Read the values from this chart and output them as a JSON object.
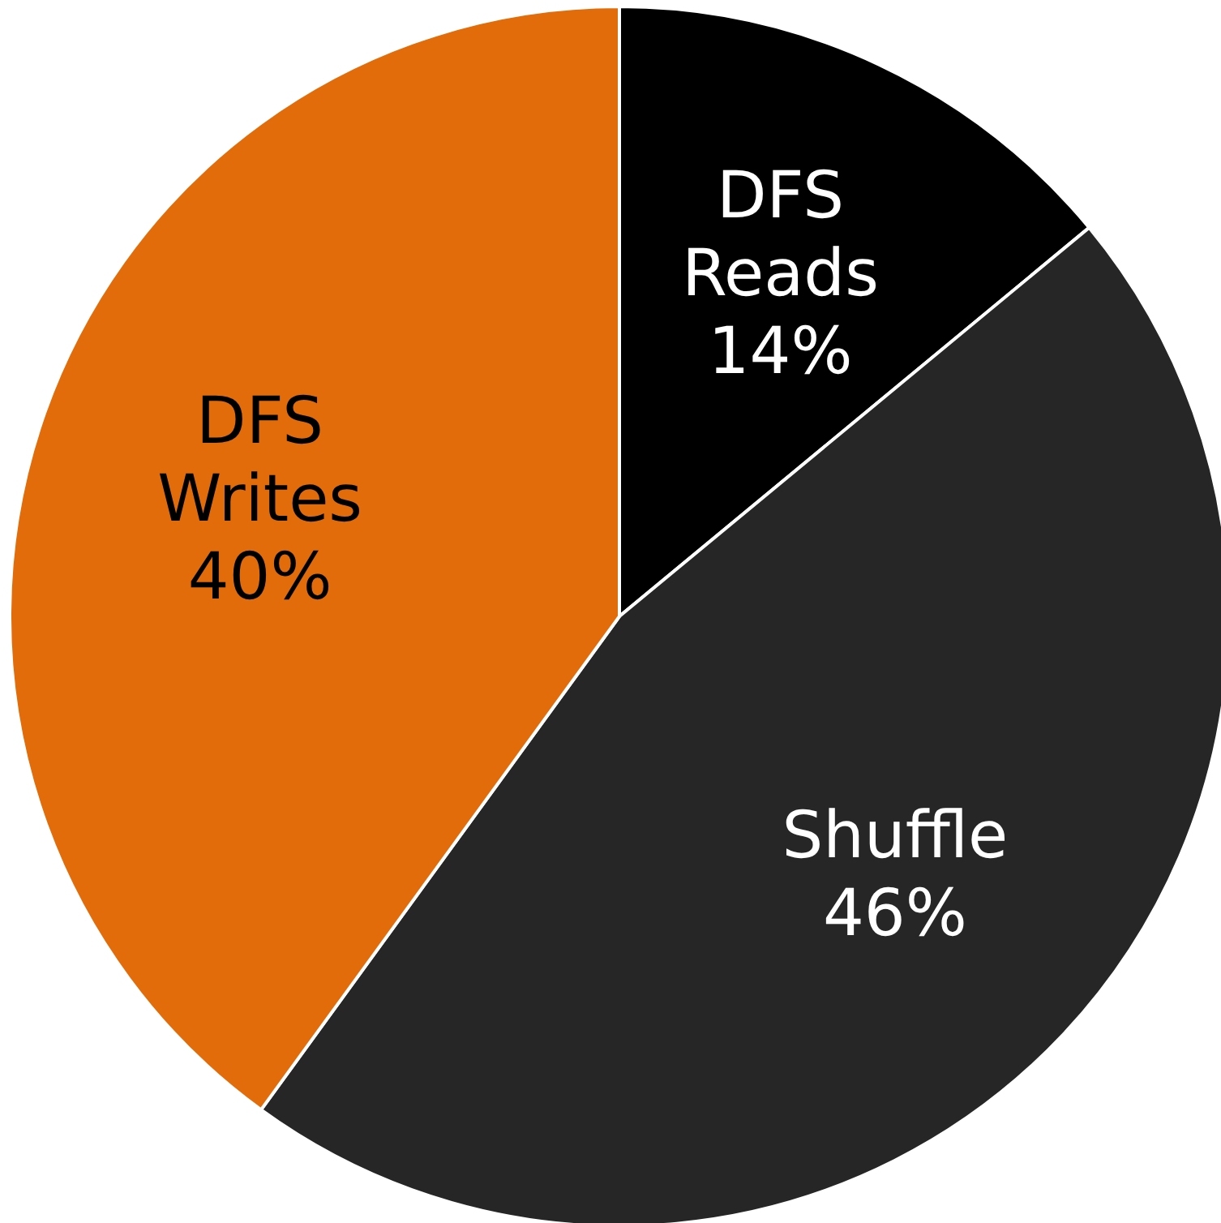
{
  "chart_data": {
    "type": "pie",
    "categories": [
      "DFS Reads",
      "Shuffle",
      "DFS Writes"
    ],
    "values": [
      14,
      46,
      40
    ],
    "colors": [
      "#000000",
      "#262626",
      "#e36c0a"
    ],
    "value_labels": [
      "14%",
      "46%",
      "40%"
    ]
  }
}
